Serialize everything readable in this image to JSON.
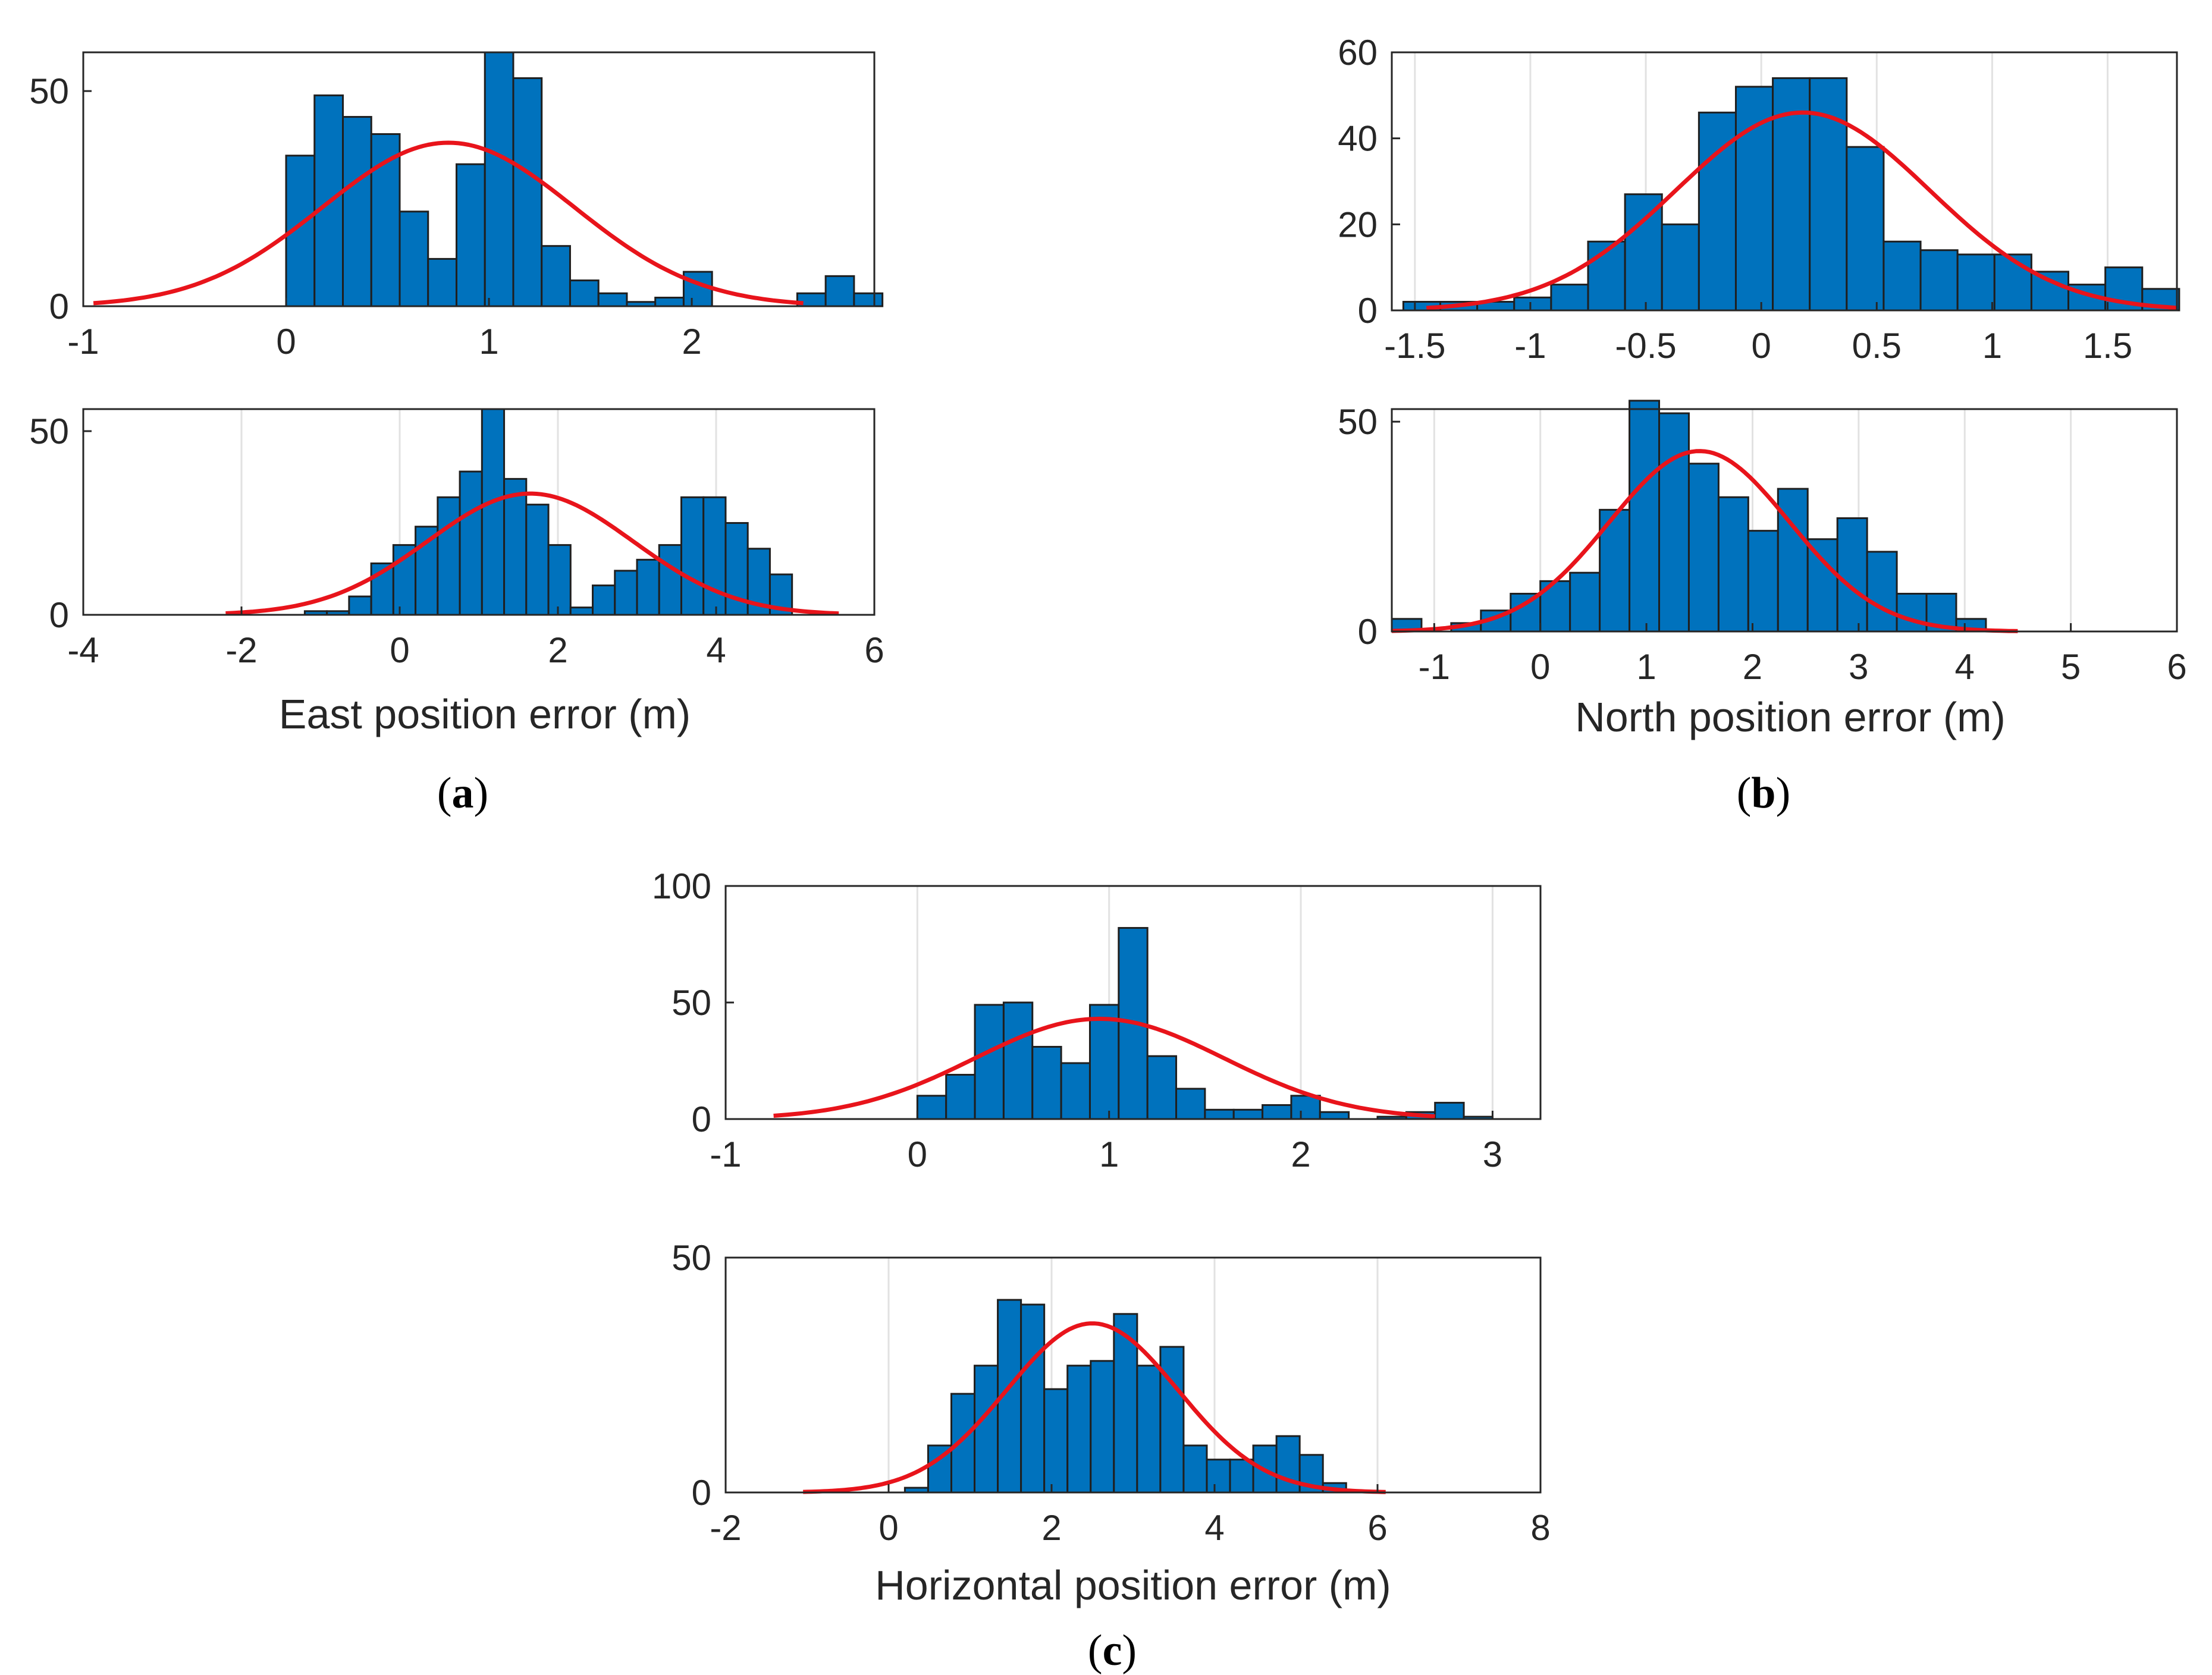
{
  "colors": {
    "bar": "#0072BD",
    "fit": "#E8141B"
  },
  "panels": {
    "a": {
      "label": "(a)",
      "letter": "a",
      "xlabel": "East position error (m)"
    },
    "b": {
      "label": "(b)",
      "letter": "b",
      "xlabel": "North position error (m)"
    },
    "c": {
      "label": "(c)",
      "letter": "c",
      "xlabel": "Horizontal position error (m)"
    }
  },
  "chart_data": [
    {
      "id": "a1",
      "panel": "a",
      "type": "bar",
      "xlabel": "",
      "xlim": [
        -1,
        2.9
      ],
      "ylim": [
        0,
        59
      ],
      "xticks": [
        -1,
        0,
        1,
        2
      ],
      "xtick_labels": [
        "-1",
        "0",
        "1",
        "2"
      ],
      "yticks": [
        0,
        50
      ],
      "ytick_labels": [
        "0",
        "50"
      ],
      "grid_x": false,
      "bin_start": 0,
      "bin_width": 0.14,
      "values": [
        35,
        49,
        44,
        40,
        22,
        11,
        33,
        59,
        53,
        14,
        6,
        3,
        1,
        2,
        8,
        0,
        0,
        0,
        3,
        7,
        3
      ],
      "fit": {
        "mean": 0.8,
        "std": 0.62,
        "peak": 38,
        "xmin": -0.95,
        "xmax": 2.55
      }
    },
    {
      "id": "a2",
      "panel": "a",
      "type": "bar",
      "xlabel": "East position error (m)",
      "xlim": [
        -4,
        6
      ],
      "ylim": [
        0,
        56
      ],
      "xticks": [
        -4,
        -2,
        0,
        2,
        4,
        6
      ],
      "xtick_labels": [
        "-4",
        "-2",
        "0",
        "2",
        "4",
        "6"
      ],
      "yticks": [
        0,
        50
      ],
      "ytick_labels": [
        "0",
        "50"
      ],
      "grid_x": true,
      "bin_start": -1.2,
      "bin_width": 0.28,
      "values": [
        1,
        1,
        5,
        14,
        19,
        24,
        32,
        39,
        56,
        37,
        30,
        19,
        2,
        8,
        12,
        15,
        19,
        32,
        32,
        25,
        18,
        11
      ],
      "fit": {
        "mean": 1.65,
        "std": 1.3,
        "peak": 33,
        "xmin": -2.2,
        "xmax": 5.55
      }
    },
    {
      "id": "b1",
      "panel": "b",
      "type": "bar",
      "xlabel": "",
      "xlim": [
        -1.6,
        1.8
      ],
      "ylim": [
        0,
        60
      ],
      "xticks": [
        -1.5,
        -1,
        -0.5,
        0,
        0.5,
        1,
        1.5
      ],
      "xtick_labels": [
        "-1.5",
        "-1",
        "-0.5",
        "0",
        "0.5",
        "1",
        "1.5"
      ],
      "yticks": [
        0,
        20,
        40,
        60
      ],
      "ytick_labels": [
        "0",
        "20",
        "40",
        "60"
      ],
      "grid_x": true,
      "bin_start": -1.55,
      "bin_width": 0.16,
      "values": [
        2,
        2,
        2,
        3,
        6,
        16,
        27,
        20,
        46,
        52,
        54,
        54,
        38,
        16,
        14,
        13,
        13,
        9,
        6,
        10,
        5
      ],
      "fit": {
        "mean": 0.18,
        "std": 0.55,
        "peak": 46,
        "xmin": -1.45,
        "xmax": 1.8
      }
    },
    {
      "id": "b2",
      "panel": "b",
      "type": "bar",
      "xlabel": "North position error (m)",
      "xlim": [
        -1.4,
        6
      ],
      "ylim": [
        0,
        53
      ],
      "xticks": [
        -1,
        0,
        1,
        2,
        3,
        4,
        5,
        6
      ],
      "xtick_labels": [
        "-1",
        "0",
        "1",
        "2",
        "3",
        "4",
        "5",
        "6"
      ],
      "yticks": [
        0,
        50
      ],
      "ytick_labels": [
        "0",
        "50"
      ],
      "grid_x": true,
      "bin_start": -1.4,
      "bin_width": 0.28,
      "values": [
        3,
        0,
        2,
        5,
        9,
        12,
        14,
        29,
        55,
        52,
        40,
        32,
        24,
        34,
        22,
        27,
        19,
        9,
        9,
        3
      ],
      "fit": {
        "mean": 1.5,
        "std": 0.85,
        "peak": 43,
        "xmin": -1.4,
        "xmax": 4.5
      }
    },
    {
      "id": "c1",
      "panel": "c",
      "type": "bar",
      "xlabel": "",
      "xlim": [
        -1,
        3.25
      ],
      "ylim": [
        0,
        100
      ],
      "xticks": [
        -1,
        0,
        1,
        2,
        3
      ],
      "xtick_labels": [
        "-1",
        "0",
        "1",
        "2",
        "3"
      ],
      "yticks": [
        0,
        50,
        100
      ],
      "ytick_labels": [
        "0",
        "50",
        "100"
      ],
      "grid_x": true,
      "bin_start": 0,
      "bin_width": 0.15,
      "values": [
        10,
        19,
        49,
        50,
        31,
        24,
        49,
        82,
        27,
        13,
        4,
        4,
        6,
        10,
        3,
        0,
        1,
        3,
        7,
        1
      ],
      "fit": {
        "mean": 0.95,
        "std": 0.65,
        "peak": 43,
        "xmin": -0.75,
        "xmax": 2.7
      }
    },
    {
      "id": "c2",
      "panel": "c",
      "type": "bar",
      "xlabel": "Horizontal position error (m)",
      "xlim": [
        -2,
        8
      ],
      "ylim": [
        0,
        50
      ],
      "xticks": [
        -2,
        0,
        2,
        4,
        6,
        8
      ],
      "xtick_labels": [
        "-2",
        "0",
        "2",
        "4",
        "6",
        "8"
      ],
      "yticks": [
        0,
        50
      ],
      "ytick_labels": [
        "0",
        "50"
      ],
      "grid_x": true,
      "bin_start": 0.2,
      "bin_width": 0.285,
      "values": [
        1,
        10,
        21,
        27,
        41,
        40,
        22,
        27,
        28,
        38,
        27,
        31,
        10,
        7,
        7,
        10,
        12,
        8,
        2
      ],
      "fit": {
        "mean": 2.5,
        "std": 1.05,
        "peak": 36,
        "xmin": -1.05,
        "xmax": 6.1
      }
    }
  ]
}
